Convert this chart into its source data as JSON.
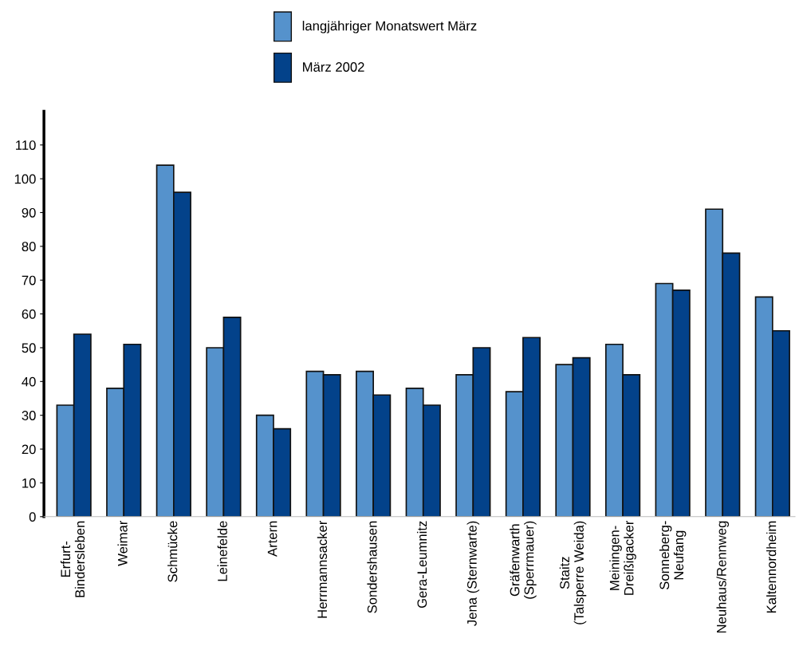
{
  "chart_data": {
    "type": "bar",
    "categories": [
      "Erfurt-\nBindersleben",
      "Weimar",
      "Schmücke",
      "Leinefelde",
      "Artern",
      "Herrmannsacker",
      "Sondershausen",
      "Gera-Leumnitz",
      "Jena (Sternwarte)",
      "Gräfenwarth\n(Sperrmauer)",
      "Staitz\n(Talsperre Weida)",
      "Meiningen-\nDreißigacker",
      "Sonneberg-\nNeufang",
      "Neuhaus/Rennweg",
      "Kaltennordheim"
    ],
    "series": [
      {
        "name": "langjähriger Monatswert März",
        "color": "#5592cc",
        "values": [
          33,
          38,
          104,
          50,
          30,
          43,
          43,
          38,
          42,
          37,
          45,
          51,
          69,
          91,
          65
        ]
      },
      {
        "name": "März 2002",
        "color": "#03428a",
        "values": [
          54,
          51,
          96,
          59,
          26,
          42,
          36,
          33,
          50,
          53,
          47,
          42,
          67,
          78,
          55
        ]
      }
    ],
    "ylim": [
      0,
      120
    ],
    "yticks": [
      0,
      10,
      20,
      30,
      40,
      50,
      60,
      70,
      80,
      90,
      100,
      110
    ],
    "grid": false,
    "legend": "top"
  }
}
